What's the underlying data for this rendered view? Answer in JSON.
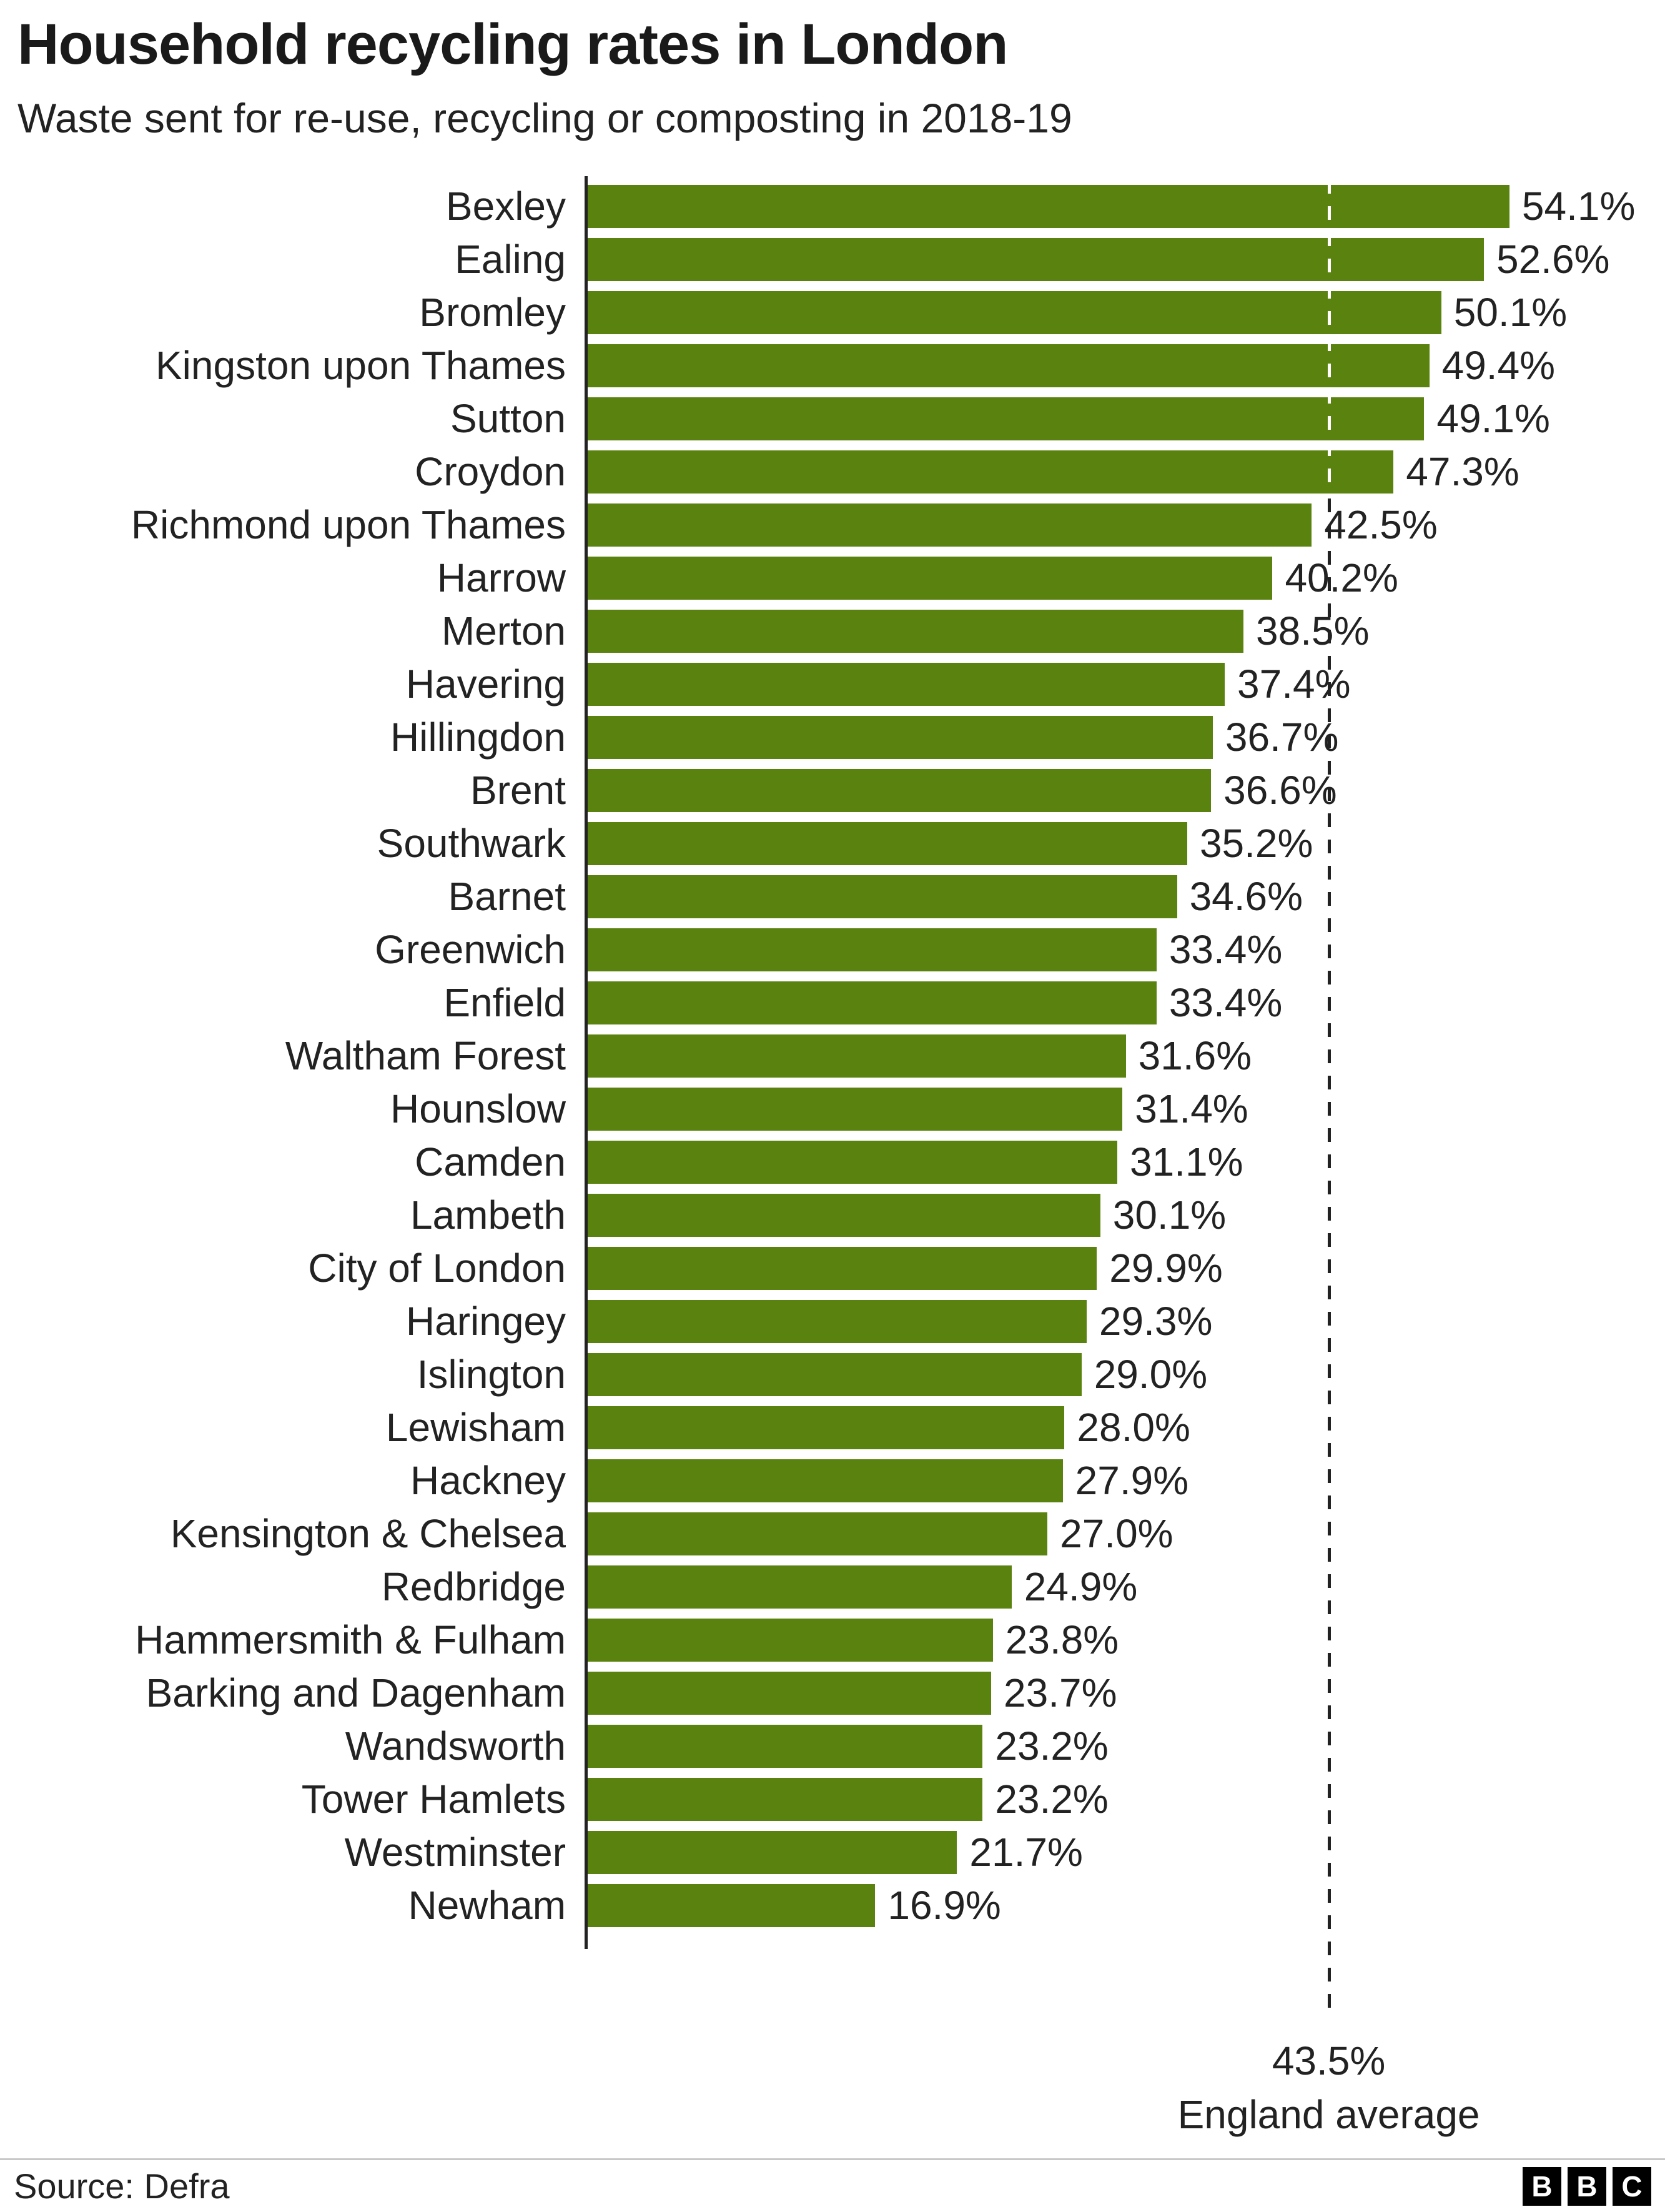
{
  "header": {
    "title": "Household recycling rates in London",
    "subtitle": "Waste sent for re-use, recycling or composting in 2018-19"
  },
  "chart_data": {
    "type": "bar",
    "orientation": "horizontal",
    "title": "Household recycling rates in London",
    "subtitle": "Waste sent for re-use, recycling or composting in 2018-19",
    "categories": [
      "Bexley",
      "Ealing",
      "Bromley",
      "Kingston upon Thames",
      "Sutton",
      "Croydon",
      "Richmond upon Thames",
      "Harrow",
      "Merton",
      "Havering",
      "Hillingdon",
      "Brent",
      "Southwark",
      "Barnet",
      "Greenwich",
      "Enfield",
      "Waltham Forest",
      "Hounslow",
      "Camden",
      "Lambeth",
      "City of London",
      "Haringey",
      "Islington",
      "Lewisham",
      "Hackney",
      "Kensington & Chelsea",
      "Redbridge",
      "Hammersmith & Fulham",
      "Barking and Dagenham",
      "Wandsworth",
      "Tower Hamlets",
      "Westminster",
      "Newham"
    ],
    "values": [
      54.1,
      52.6,
      50.1,
      49.4,
      49.1,
      47.3,
      42.5,
      40.2,
      38.5,
      37.4,
      36.7,
      36.6,
      35.2,
      34.6,
      33.4,
      33.4,
      31.6,
      31.4,
      31.1,
      30.1,
      29.9,
      29.3,
      29.0,
      28.0,
      27.9,
      27.0,
      24.9,
      23.8,
      23.7,
      23.2,
      23.2,
      21.7,
      16.9
    ],
    "value_suffix": "%",
    "xlim": [
      0,
      54.1
    ],
    "grid": false,
    "legend": "none",
    "bar_color": "#5a820f",
    "reference_line": {
      "value": 43.5,
      "label": "43.5%",
      "sublabel": "England average"
    }
  },
  "footer": {
    "source": "Source: Defra",
    "logo_letters": [
      "B",
      "B",
      "C"
    ]
  }
}
